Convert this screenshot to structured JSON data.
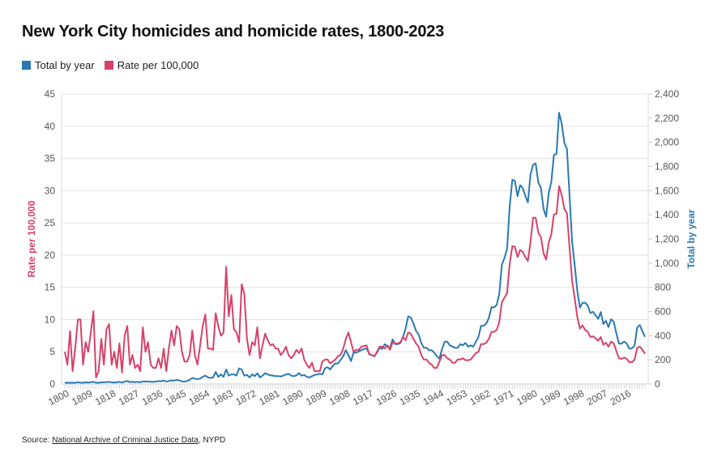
{
  "chart_data": {
    "type": "line",
    "title": "New York City homicides and homicide rates, 1800-2023",
    "ylabel_left": "Rate per 100,000",
    "ylabel_right": "Total by year",
    "ylim_left": [
      0,
      45
    ],
    "ylim_right": [
      0,
      2400
    ],
    "xlim": [
      1800,
      2023
    ],
    "yticks_left": [
      "0",
      "5",
      "10",
      "15",
      "20",
      "25",
      "30",
      "35",
      "40",
      "45"
    ],
    "yticks_right": [
      "0",
      "200",
      "400",
      "600",
      "800",
      "1,000",
      "1,200",
      "1,400",
      "1,600",
      "1,800",
      "2,000",
      "2,200",
      "2,400"
    ],
    "xticks": [
      "1800",
      "1809",
      "1818",
      "1827",
      "1836",
      "1845",
      "1854",
      "1863",
      "1872",
      "1881",
      "1890",
      "1899",
      "1908",
      "1917",
      "1926",
      "1935",
      "1944",
      "1953",
      "1962",
      "1971",
      "1980",
      "1989",
      "1998",
      "2007",
      "2016"
    ],
    "grid": true,
    "legend_position": "top-left",
    "colors": {
      "total": "#2a79b4",
      "rate": "#d6426a"
    },
    "start_year": 1800,
    "series": [
      {
        "name": "Total by year",
        "axis": "right",
        "values": [
          10,
          12,
          10,
          12,
          10,
          15,
          12,
          10,
          14,
          12,
          15,
          18,
          12,
          10,
          15,
          14,
          16,
          18,
          14,
          12,
          15,
          18,
          12,
          20,
          25,
          16,
          18,
          15,
          18,
          14,
          22,
          20,
          22,
          18,
          18,
          20,
          25,
          22,
          30,
          20,
          25,
          30,
          28,
          35,
          30,
          22,
          20,
          25,
          35,
          50,
          45,
          40,
          45,
          60,
          70,
          55,
          50,
          55,
          100,
          60,
          80,
          60,
          120,
          70,
          80,
          80,
          70,
          130,
          120,
          70,
          75,
          55,
          80,
          65,
          90,
          55,
          70,
          90,
          80,
          72,
          70,
          65,
          65,
          62,
          70,
          80,
          85,
          70,
          65,
          72,
          90,
          70,
          75,
          60,
          55,
          65,
          75,
          80,
          85,
          80,
          130,
          140,
          120,
          150,
          170,
          170,
          200,
          230,
          280,
          240,
          190,
          260,
          260,
          270,
          280,
          290,
          295,
          250,
          240,
          230,
          260,
          300,
          290,
          330,
          310,
          300,
          370,
          330,
          330,
          340,
          390,
          460,
          560,
          550,
          500,
          440,
          410,
          340,
          300,
          300,
          280,
          280,
          260,
          230,
          210,
          290,
          350,
          350,
          320,
          310,
          300,
          300,
          330,
          320,
          340,
          310,
          320,
          310,
          350,
          390,
          482,
          483,
          500,
          548,
          637,
          634,
          654,
          746,
          986,
          1043,
          1117,
          1466,
          1691,
          1680,
          1554,
          1645,
          1622,
          1557,
          1504,
          1733,
          1814,
          1826,
          1668,
          1622,
          1450,
          1384,
          1582,
          1672,
          1896,
          1905,
          2245,
          2154,
          1995,
          1946,
          1561,
          1177,
          983,
          770,
          633,
          671,
          673,
          649,
          587,
          597,
          570,
          539,
          596,
          496,
          523,
          471,
          536,
          515,
          419,
          335,
          333,
          352,
          335,
          292,
          295,
          319,
          468,
          488,
          438,
          391
        ]
      },
      {
        "name": "Rate per 100,000",
        "axis": "left",
        "values": [
          5,
          3,
          8.2,
          2,
          5.5,
          10,
          10,
          3,
          6.5,
          5,
          8,
          11.3,
          1,
          2,
          7,
          3,
          8.5,
          9.3,
          3,
          5,
          2.5,
          6.3,
          1.8,
          7.5,
          9,
          3,
          4.5,
          2.5,
          3,
          2,
          8.8,
          5,
          6.5,
          3,
          2.5,
          2.5,
          4,
          2.5,
          5.5,
          2,
          5.5,
          8.3,
          6,
          9,
          8.5,
          5,
          3.5,
          3.5,
          4.5,
          8.3,
          4.5,
          3,
          6,
          9,
          10.8,
          5.5,
          5.5,
          5.3,
          11,
          9,
          7.5,
          8,
          18.2,
          10.5,
          13.8,
          8.5,
          8,
          6.5,
          15.5,
          14,
          7,
          4.5,
          6.5,
          6,
          8.8,
          4,
          6,
          7.8,
          6.8,
          6,
          6.2,
          5.5,
          5.5,
          4.5,
          5,
          5.8,
          4.5,
          4,
          4.5,
          5.3,
          4.8,
          5.5,
          3.8,
          3,
          2.5,
          3.3,
          2,
          2,
          2,
          3.5,
          3.8,
          3.8,
          3.2,
          3.5,
          3.8,
          4.3,
          4.5,
          5.5,
          7,
          8,
          6.5,
          5,
          5.3,
          5.3,
          5.8,
          5.9,
          6,
          4.6,
          4.5,
          4.3,
          5,
          5.8,
          5.8,
          5.5,
          6,
          5.3,
          6.5,
          6.3,
          6.3,
          6.5,
          7.3,
          6.8,
          8,
          7.8,
          7,
          6.3,
          5.8,
          4.5,
          3.8,
          3.8,
          3.3,
          3,
          2.5,
          2.5,
          3.5,
          4.5,
          4.5,
          4,
          3.8,
          3.3,
          3.3,
          3.8,
          3.8,
          4,
          3.7,
          3.7,
          3.8,
          4.3,
          4.8,
          5,
          6.2,
          6.2,
          6.4,
          7,
          8.1,
          8.1,
          8.4,
          9.6,
          12.7,
          13.4,
          14.1,
          18.6,
          21.4,
          21.3,
          19.7,
          20.8,
          20.5,
          19.7,
          19.1,
          22,
          25.8,
          25.8,
          23.5,
          22.8,
          20.3,
          19.3,
          22,
          23.2,
          26.3,
          26.4,
          30.7,
          29.3,
          27.2,
          26.5,
          21.2,
          16,
          13.3,
          10.4,
          8.6,
          9.1,
          8.4,
          8.1,
          7.3,
          7.4,
          7.1,
          6.7,
          7.3,
          6.1,
          6.4,
          5.8,
          6.6,
          6.3,
          5.1,
          4,
          3.9,
          4.1,
          3.9,
          3.4,
          3.4,
          3.8,
          5.6,
          5.8,
          5.3,
          4.7
        ]
      }
    ]
  },
  "legend": {
    "total": "Total by year",
    "rate": "Rate per 100,000"
  },
  "source": {
    "prefix": "Source: ",
    "link": "National Archive of Criminal Justice Data",
    "suffix": ", NYPD"
  }
}
